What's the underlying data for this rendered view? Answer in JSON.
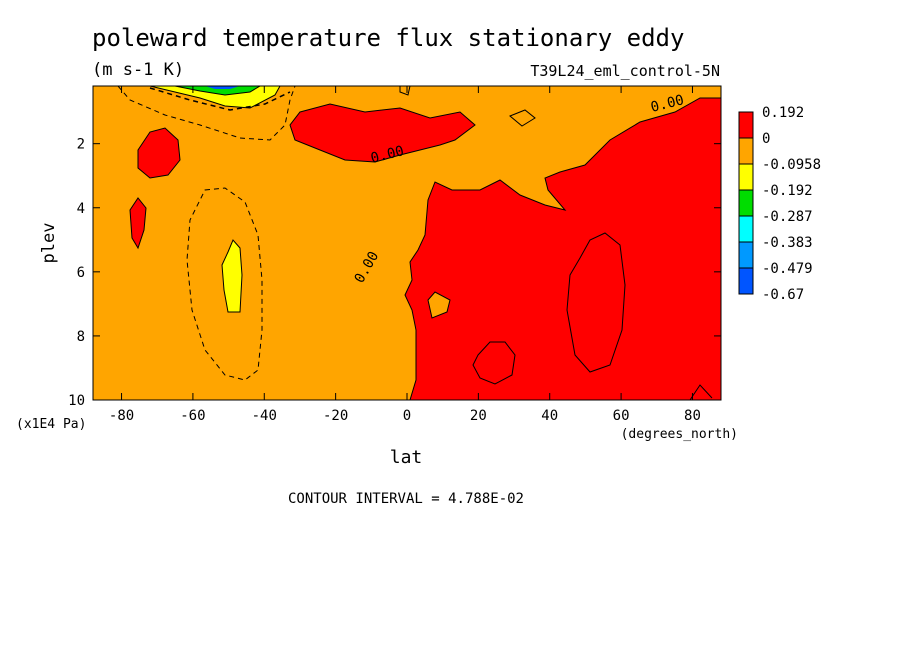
{
  "chart_data": {
    "type": "heatmap",
    "title": "poleward temperature flux stationary eddy",
    "units": "(m s-1 K)",
    "run_label": "T39L24_eml_control-5N",
    "xlabel": "lat",
    "xunits": "(degrees_north)",
    "ylabel": "plev",
    "yunits": "(x1E4 Pa)",
    "xlim": [
      -88,
      88
    ],
    "ylim": [
      10,
      0.2
    ],
    "x_ticks": [
      -80,
      -60,
      -40,
      -20,
      0,
      20,
      40,
      60,
      80
    ],
    "y_ticks": [
      2,
      4,
      6,
      8,
      10
    ],
    "contour_interval_text": "CONTOUR INTERVAL = 4.788E-02",
    "contour_labels": [
      "0.00",
      "0.00",
      "0.00"
    ],
    "legend": {
      "placement": "right",
      "levels": [
        "0.192",
        "0",
        "-0.0958",
        "-0.192",
        "-0.287",
        "-0.383",
        "-0.479",
        "-0.67"
      ],
      "colors": [
        "#ff0000",
        "#ffa500",
        "#ffff00",
        "#00dd00",
        "#00ffff",
        "#0099ff",
        "#0055ff"
      ]
    }
  }
}
